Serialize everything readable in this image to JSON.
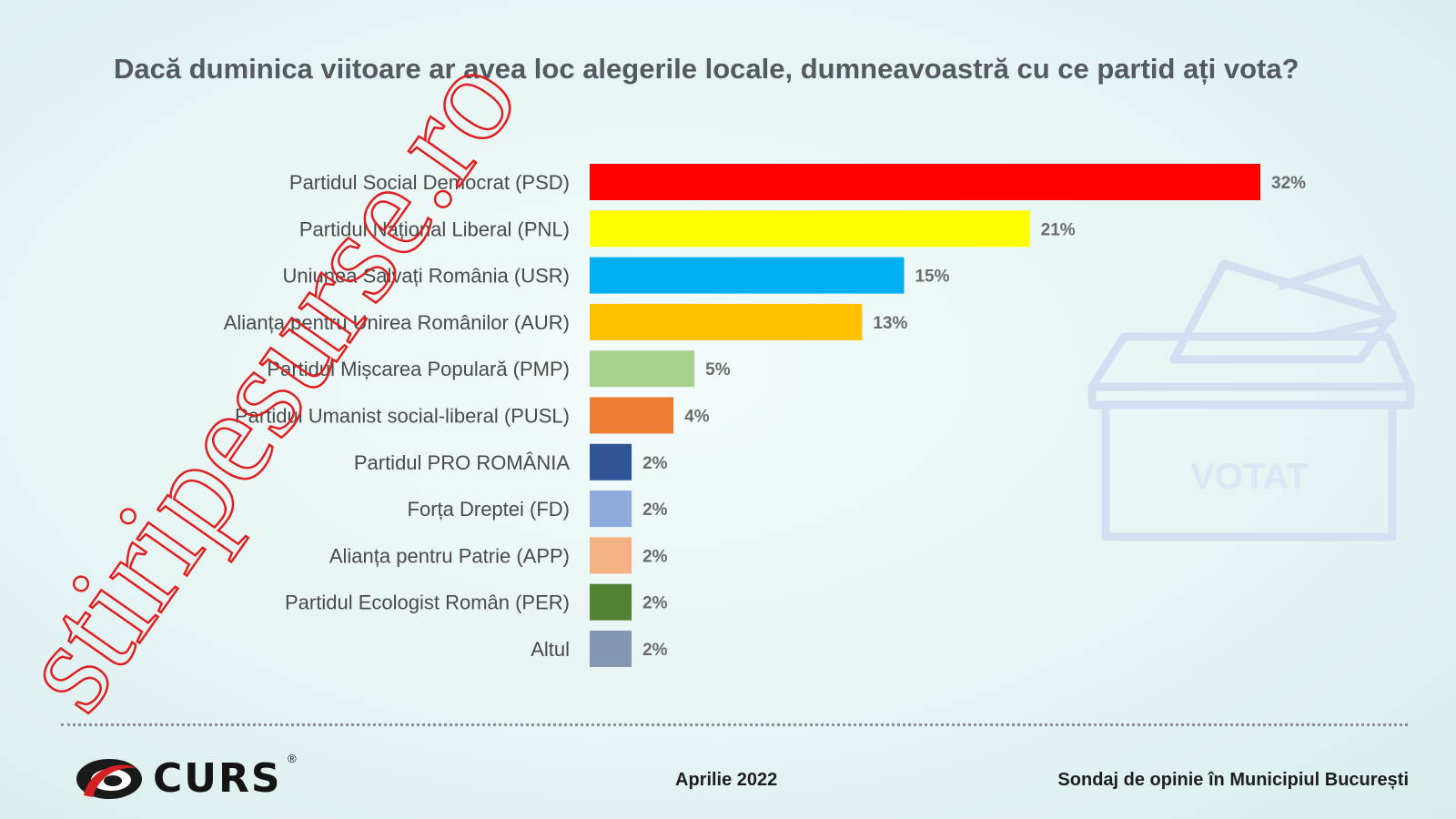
{
  "title": "Dacă duminica viitoare ar avea loc alegerile locale, dumneavoastră cu ce partid ați vota?",
  "footer": {
    "date": "Aprilie 2022",
    "survey": "Sondaj de opinie în Municipiul București",
    "logo_text": "CURS",
    "logo_mark": "®"
  },
  "watermark": "stiripesurse.ro",
  "ballot_box_text": "VOTAT",
  "colors": {
    "title": "#555a5d",
    "watermark": "#e02020"
  },
  "chart_data": {
    "type": "bar",
    "orientation": "horizontal",
    "title": "Dacă duminica viitoare ar avea loc alegerile locale, dumneavoastră cu ce partid ați vota?",
    "xlim": [
      0,
      32
    ],
    "grid": false,
    "categories": [
      "Partidul Social Democrat (PSD)",
      "Partidul Național Liberal (PNL)",
      "Uniunea Salvați România (USR)",
      "Alianța pentru Unirea Românilor (AUR)",
      "Partidul Mișcarea Populară (PMP)",
      "Partidul Umanist social-liberal (PUSL)",
      "Partidul PRO ROMÂNIA",
      "Forța Dreptei (FD)",
      "Alianța pentru Patrie (APP)",
      "Partidul Ecologist Român (PER)",
      "Altul"
    ],
    "values": [
      32,
      21,
      15,
      13,
      5,
      4,
      2,
      2,
      2,
      2,
      2
    ],
    "value_labels": [
      "32%",
      "21%",
      "15%",
      "13%",
      "5%",
      "4%",
      "2%",
      "2%",
      "2%",
      "2%",
      "2%"
    ],
    "colors": [
      "#ff0000",
      "#ffff00",
      "#00b0f0",
      "#ffc000",
      "#a9d18e",
      "#ed7d31",
      "#2f5597",
      "#8faadc",
      "#f4b183",
      "#548235",
      "#8497b0"
    ]
  }
}
